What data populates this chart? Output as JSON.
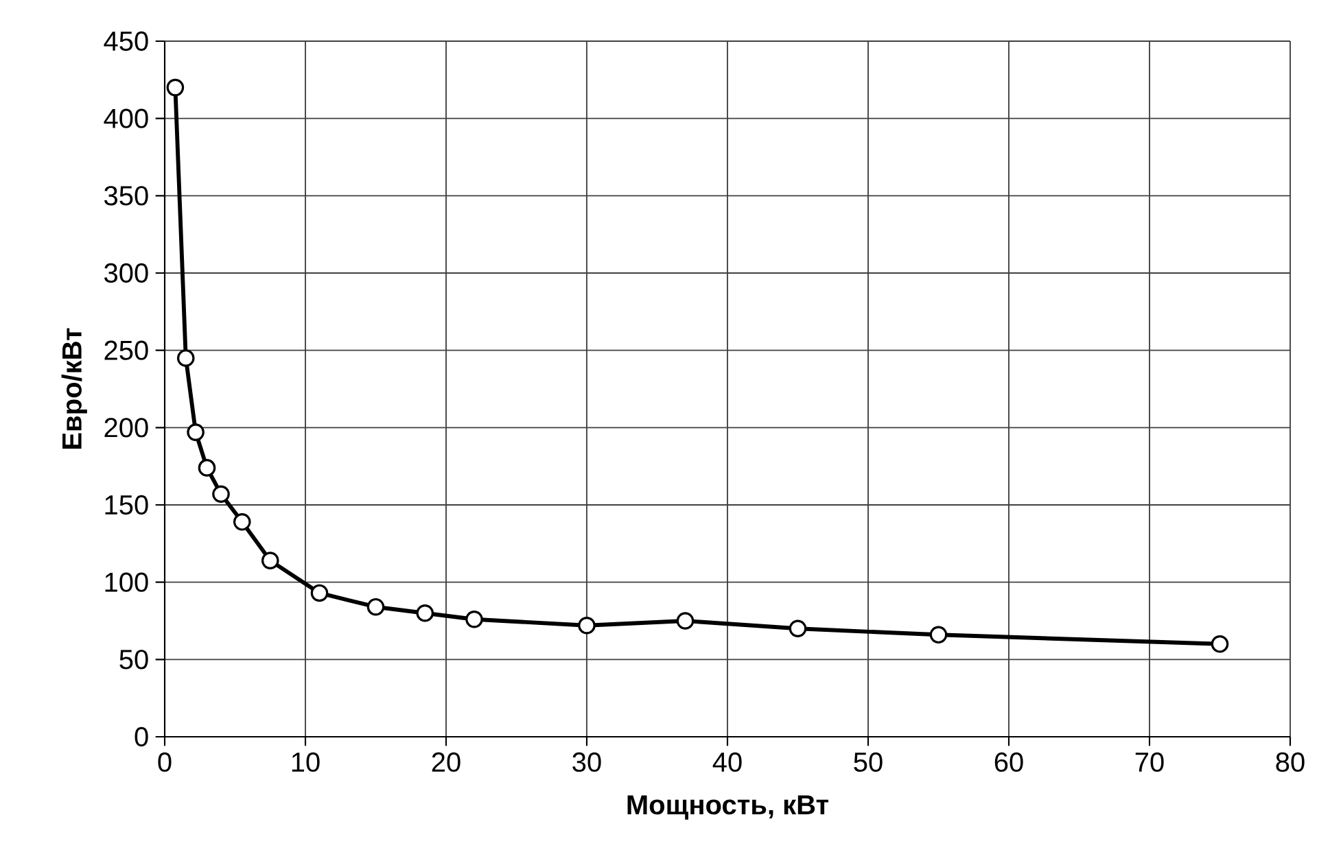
{
  "chart_data": {
    "type": "line",
    "xlabel": "Мощность, кВт",
    "ylabel": "Евро/кВт",
    "x": [
      0.75,
      1.5,
      2.2,
      3,
      4,
      5.5,
      7.5,
      11,
      15,
      18.5,
      22,
      30,
      37,
      45,
      55,
      75
    ],
    "series": [
      {
        "color": "#000000",
        "values": [
          420,
          245,
          197,
          174,
          157,
          139,
          114,
          93,
          84,
          80,
          76,
          72,
          75,
          70,
          66,
          60
        ]
      }
    ],
    "xlim": [
      0,
      80
    ],
    "xticks": [
      0,
      10,
      20,
      30,
      40,
      50,
      60,
      70,
      80
    ],
    "ylim": [
      0,
      450
    ],
    "yticks": [
      0,
      50,
      100,
      150,
      200,
      250,
      300,
      350,
      400,
      450
    ],
    "grid": true,
    "legend": false,
    "marker": "circle",
    "line_style": "solid"
  }
}
